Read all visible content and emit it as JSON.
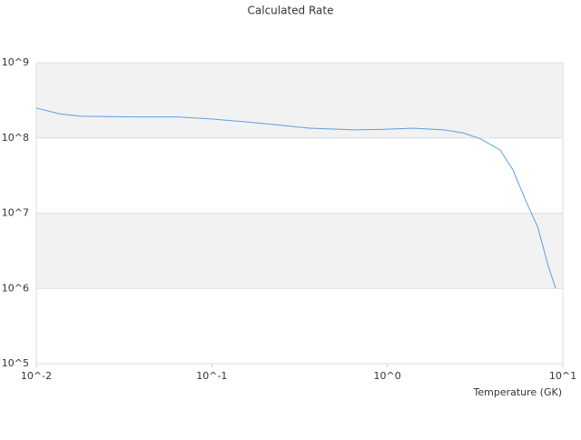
{
  "chart_data": {
    "type": "line",
    "title": "Calculated Rate",
    "x_label": "Temperature (GK)",
    "log_x": true,
    "log_y": true,
    "bands": true,
    "xlim": [
      0.01,
      10
    ],
    "ylim": [
      100000,
      1000000000
    ],
    "xticks": [
      {
        "value": 0.01,
        "label": "10^-2"
      },
      {
        "value": 0.1,
        "label": "10^-1"
      },
      {
        "value": 1,
        "label": "10^0"
      },
      {
        "value": 10,
        "label": "10^1"
      }
    ],
    "yticks": [
      {
        "value": 100000,
        "label": "10^5"
      },
      {
        "value": 1000000,
        "label": "10^6"
      },
      {
        "value": 10000000,
        "label": "10^7"
      },
      {
        "value": 100000000,
        "label": "10^8"
      },
      {
        "value": 1000000000,
        "label": "10^9"
      }
    ],
    "series": [
      {
        "color": "#5aa0e6",
        "x": [
          0.01,
          0.0135,
          0.018,
          0.037,
          0.063,
          0.096,
          0.155,
          0.25,
          0.36,
          0.65,
          0.92,
          1.4,
          2.1,
          2.7,
          3.4,
          4.4,
          5.2,
          6.2,
          7.2,
          8.2,
          9.1
        ],
        "values": [
          250000000,
          210000000,
          194000000,
          190000000,
          190000000,
          180000000,
          164000000,
          147000000,
          135000000,
          128000000,
          130000000,
          135000000,
          128000000,
          117000000,
          97000000,
          69000000,
          37500000,
          14000000,
          6500000,
          2100000,
          1000000
        ]
      }
    ]
  }
}
